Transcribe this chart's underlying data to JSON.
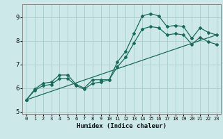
{
  "title": "",
  "xlabel": "Humidex (Indice chaleur)",
  "bg_color": "#cce8e8",
  "grid_color": "#aacccc",
  "line_color": "#1a6b5a",
  "xlim": [
    -0.5,
    23.5
  ],
  "ylim": [
    4.9,
    9.55
  ],
  "yticks": [
    5,
    6,
    7,
    8,
    9
  ],
  "xticks": [
    0,
    1,
    2,
    3,
    4,
    5,
    6,
    7,
    8,
    9,
    10,
    11,
    12,
    13,
    14,
    15,
    16,
    17,
    18,
    19,
    20,
    21,
    22,
    23
  ],
  "series1_x": [
    0,
    1,
    2,
    3,
    4,
    5,
    6,
    7,
    8,
    9,
    10,
    11,
    12,
    13,
    14,
    15,
    16,
    17,
    18,
    19,
    20,
    21,
    22,
    23
  ],
  "series1_y": [
    5.5,
    5.95,
    6.2,
    6.25,
    6.55,
    6.55,
    6.15,
    6.0,
    6.35,
    6.35,
    6.35,
    7.1,
    7.55,
    8.3,
    9.05,
    9.15,
    9.05,
    8.6,
    8.65,
    8.6,
    8.1,
    8.55,
    8.35,
    8.25
  ],
  "series2_x": [
    0,
    1,
    2,
    3,
    4,
    5,
    6,
    7,
    8,
    9,
    10,
    11,
    12,
    13,
    14,
    15,
    16,
    17,
    18,
    19,
    20,
    21,
    22,
    23
  ],
  "series2_y": [
    5.5,
    5.9,
    6.1,
    6.15,
    6.4,
    6.4,
    6.1,
    5.95,
    6.2,
    6.25,
    6.35,
    6.9,
    7.3,
    7.9,
    8.5,
    8.6,
    8.55,
    8.25,
    8.3,
    8.25,
    7.85,
    8.15,
    7.95,
    7.85
  ],
  "series3_x": [
    0,
    23
  ],
  "series3_y": [
    5.5,
    8.25
  ]
}
